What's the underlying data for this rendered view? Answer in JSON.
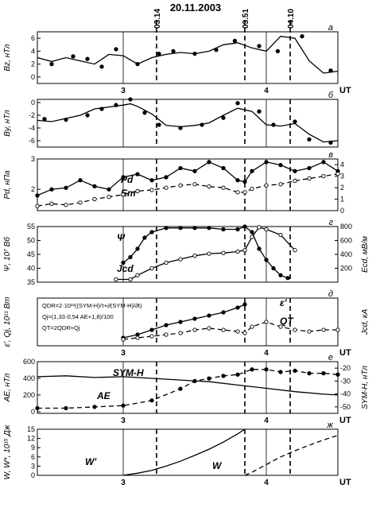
{
  "title": "20.11.2003",
  "ut_label": "UT",
  "event_times": [
    "03.14",
    "03.51",
    "04.10"
  ],
  "event_hours": [
    3.233,
    3.85,
    4.167
  ],
  "x_range": [
    2.4,
    4.5
  ],
  "x_ticks": [
    3,
    4
  ],
  "x_tick_labels": [
    "3",
    "4"
  ],
  "panels": [
    {
      "id": "a",
      "letter": "a",
      "ylabel": "Bz, нТл",
      "y_range": [
        -1,
        7
      ],
      "y_ticks": [
        0,
        2,
        4,
        6
      ],
      "y_tick_labels": [
        "0",
        "2",
        "4",
        "6"
      ],
      "series": [
        {
          "axis": "left",
          "style": "solid",
          "markers": "none",
          "x": [
            2.4,
            2.5,
            2.6,
            2.7,
            2.8,
            2.9,
            3.0,
            3.1,
            3.2,
            3.3,
            3.4,
            3.5,
            3.6,
            3.7,
            3.8,
            3.9,
            4.0,
            4.1,
            4.2,
            4.3,
            4.4,
            4.5
          ],
          "y": [
            3.0,
            2.4,
            3.0,
            2.5,
            2.0,
            3.5,
            3.3,
            2.0,
            3.0,
            3.5,
            3.8,
            3.6,
            4.0,
            5.0,
            5.3,
            4.5,
            4.0,
            6.3,
            6.0,
            2.5,
            0.6,
            0.9
          ]
        },
        {
          "axis": "left",
          "style": "none",
          "markers": "filled",
          "x": [
            2.5,
            2.65,
            2.75,
            2.85,
            2.95,
            3.1,
            3.25,
            3.35,
            3.5,
            3.65,
            3.78,
            3.95,
            4.08,
            4.25,
            4.45
          ],
          "y": [
            2.0,
            3.2,
            2.8,
            1.6,
            4.3,
            2.0,
            3.6,
            4.0,
            3.6,
            4.2,
            5.6,
            4.8,
            4.0,
            6.3,
            1.0
          ]
        }
      ]
    },
    {
      "id": "b",
      "letter": "б",
      "ylabel": "By, нТл",
      "y_range": [
        -7,
        0.5
      ],
      "y_ticks": [
        0,
        -2,
        -4,
        -6
      ],
      "y_tick_labels": [
        "0",
        "-2",
        "-4",
        "-6"
      ],
      "series": [
        {
          "axis": "left",
          "style": "solid",
          "markers": "none",
          "x": [
            2.4,
            2.5,
            2.6,
            2.7,
            2.8,
            2.9,
            3.0,
            3.05,
            3.1,
            3.2,
            3.3,
            3.4,
            3.5,
            3.6,
            3.7,
            3.8,
            3.9,
            4.0,
            4.1,
            4.2,
            4.3,
            4.4,
            4.5
          ],
          "y": [
            -2.8,
            -3.0,
            -2.5,
            -2.0,
            -1.0,
            -0.7,
            -0.4,
            -0.2,
            -0.6,
            -1.8,
            -3.6,
            -3.8,
            -3.6,
            -3.2,
            -2.0,
            -0.9,
            -1.4,
            -3.5,
            -3.7,
            -3.3,
            -5.0,
            -6.2,
            -6.0
          ]
        },
        {
          "axis": "left",
          "style": "none",
          "markers": "filled",
          "x": [
            2.45,
            2.6,
            2.75,
            2.85,
            2.95,
            3.05,
            3.15,
            3.25,
            3.4,
            3.55,
            3.7,
            3.8,
            3.95,
            4.05,
            4.2,
            4.3,
            4.45
          ],
          "y": [
            -2.6,
            -2.7,
            -2.0,
            -1.0,
            -0.4,
            0.5,
            -1.6,
            -3.5,
            -4.0,
            -3.5,
            -2.4,
            -0.1,
            -1.4,
            -3.5,
            -3.0,
            -5.8,
            -6.3
          ]
        }
      ]
    },
    {
      "id": "v",
      "letter": "в",
      "ylabel": "Pd, нПа",
      "y_range": [
        1.3,
        3.0
      ],
      "y_ticks": [
        2,
        3
      ],
      "y_tick_labels": [
        "2",
        "3"
      ],
      "y2_range": [
        0,
        4.5
      ],
      "y2_ticks": [
        0,
        1,
        2,
        3,
        4
      ],
      "y2_tick_labels": [
        "0",
        "1",
        "2",
        "3",
        "4"
      ],
      "labels": [
        "Pd",
        "Em"
      ],
      "series": [
        {
          "name": "Pd",
          "axis": "left",
          "style": "solid",
          "markers": "filled",
          "x": [
            2.4,
            2.5,
            2.6,
            2.7,
            2.8,
            2.9,
            3.0,
            3.1,
            3.2,
            3.3,
            3.4,
            3.5,
            3.6,
            3.7,
            3.8,
            3.85,
            3.9,
            4.0,
            4.1,
            4.2,
            4.3,
            4.4,
            4.5
          ],
          "y": [
            1.8,
            2.0,
            2.05,
            2.3,
            2.1,
            2.0,
            2.4,
            2.5,
            2.3,
            2.4,
            2.7,
            2.6,
            2.9,
            2.7,
            2.3,
            2.25,
            2.6,
            2.9,
            2.8,
            2.6,
            2.7,
            2.9,
            2.6
          ]
        },
        {
          "name": "Em",
          "axis": "right",
          "style": "dashed",
          "markers": "open",
          "x": [
            2.4,
            2.5,
            2.6,
            2.7,
            2.8,
            2.9,
            3.0,
            3.1,
            3.2,
            3.3,
            3.4,
            3.5,
            3.6,
            3.7,
            3.8,
            3.85,
            3.9,
            4.0,
            4.1,
            4.2,
            4.3,
            4.4,
            4.5
          ],
          "y": [
            0.4,
            0.6,
            0.5,
            0.7,
            1.0,
            1.2,
            1.4,
            1.7,
            1.8,
            2.0,
            2.2,
            2.3,
            2.1,
            2.0,
            1.6,
            1.6,
            1.9,
            2.2,
            2.3,
            2.6,
            2.8,
            3.0,
            3.2
          ]
        }
      ]
    },
    {
      "id": "g",
      "letter": "г",
      "ylabel": "Ψ, 10⁷ Вб",
      "y2label": "Ecd, мВ/м",
      "y_range": [
        35,
        55
      ],
      "y_ticks": [
        35,
        40,
        45,
        50,
        55
      ],
      "y_tick_labels": [
        "35",
        "40",
        "45",
        "50",
        "55"
      ],
      "y2_range": [
        0,
        800
      ],
      "y2_ticks": [
        200,
        400,
        600,
        800
      ],
      "y2_tick_labels": [
        "200",
        "400",
        "600",
        "800"
      ],
      "labels": [
        "Ψ",
        "Jcd"
      ],
      "series": [
        {
          "name": "Ψ",
          "axis": "left",
          "style": "solid",
          "markers": "filled",
          "x": [
            3.0,
            3.05,
            3.1,
            3.15,
            3.2,
            3.3,
            3.4,
            3.5,
            3.6,
            3.7,
            3.8,
            3.85,
            3.9,
            3.95,
            4.0,
            4.05,
            4.1,
            4.15
          ],
          "y": [
            42,
            44,
            47,
            51,
            53,
            54.5,
            54.5,
            54.5,
            54.5,
            54,
            54,
            55,
            53,
            47,
            43,
            40,
            37.5,
            36.5
          ]
        },
        {
          "name": "Jcd",
          "axis": "right",
          "style": "solid",
          "markers": "open",
          "x": [
            2.95,
            3.05,
            3.1,
            3.2,
            3.3,
            3.4,
            3.5,
            3.6,
            3.7,
            3.8,
            3.85,
            3.9,
            3.95,
            4.0,
            4.1,
            4.2
          ],
          "y": [
            40,
            40,
            100,
            200,
            280,
            330,
            380,
            410,
            420,
            440,
            460,
            650,
            790,
            760,
            680,
            460
          ]
        }
      ]
    },
    {
      "id": "d",
      "letter": "д",
      "ylabel": "ε', Qj, 10¹¹ Вт",
      "y2label": "Jcd, кА",
      "formulas": [
        "QDR=2·10¹³((SYM-H)/τ+∂(SYM-H)/∂t)",
        "Qj=(1,33·0,54 AE+1,8)/100",
        "QT=2QDR+Qj"
      ],
      "labels": [
        "ε'",
        "QT"
      ],
      "series": [
        {
          "name": "ε'",
          "axis": "left",
          "style": "solid",
          "markers": "filled",
          "x": [
            3.0,
            3.1,
            3.2,
            3.3,
            3.4,
            3.5,
            3.6,
            3.7,
            3.8,
            3.85
          ],
          "y": [
            2.5,
            3.5,
            5.0,
            6.5,
            7.5,
            8.5,
            9.5,
            10.5,
            12.0,
            13.0
          ]
        },
        {
          "name": "QT",
          "axis": "left",
          "style": "dashed",
          "markers": "open",
          "x": [
            3.0,
            3.1,
            3.2,
            3.3,
            3.4,
            3.5,
            3.6,
            3.7,
            3.8,
            3.85,
            3.9,
            4.0,
            4.1,
            4.2,
            4.3,
            4.4,
            4.5
          ],
          "y": [
            2.0,
            2.5,
            3.0,
            3.5,
            4.0,
            5.0,
            5.5,
            5.0,
            4.5,
            4.0,
            6.0,
            7.5,
            6.0,
            5.0,
            4.5,
            5.0,
            5.0
          ]
        }
      ]
    },
    {
      "id": "e",
      "letter": "е",
      "ylabel": "AE, нТл",
      "y2label": "SYM-H, нТл",
      "y_range": [
        -20,
        600
      ],
      "y_ticks": [
        0,
        200,
        400,
        600
      ],
      "y_tick_labels": [
        "0",
        "200",
        "400",
        "600"
      ],
      "y2_range": [
        -55,
        -15
      ],
      "y2_ticks": [
        -20,
        -30,
        -40,
        -50
      ],
      "y2_tick_labels": [
        "-20",
        "-30",
        "-40",
        "-50"
      ],
      "labels": [
        "SYM-H",
        "AE"
      ],
      "series": [
        {
          "name": "SYM-H",
          "axis": "left",
          "style": "solid",
          "markers": "none",
          "x": [
            2.4,
            2.6,
            2.8,
            3.0,
            3.2,
            3.4,
            3.6,
            3.8,
            4.0,
            4.2,
            4.4,
            4.5
          ],
          "y": [
            420,
            430,
            410,
            420,
            400,
            380,
            360,
            320,
            280,
            240,
            210,
            200
          ]
        },
        {
          "name": "AE",
          "axis": "right",
          "style": "dashed",
          "markers": "filled",
          "x": [
            2.4,
            2.6,
            2.8,
            3.0,
            3.2,
            3.4,
            3.5,
            3.6,
            3.7,
            3.8,
            3.9,
            4.0,
            4.1,
            4.2,
            4.3,
            4.4,
            4.5
          ],
          "y": [
            -51,
            -51,
            -50,
            -49,
            -45,
            -36,
            -30,
            -28,
            -26,
            -25,
            -21,
            -21,
            -23,
            -22,
            -24,
            -24,
            -25
          ]
        }
      ]
    },
    {
      "id": "zh",
      "letter": "ж",
      "ylabel": "W, W*, 10¹⁵ Дж",
      "y_range": [
        0,
        15
      ],
      "y_ticks": [
        0,
        3,
        6,
        9,
        12,
        15
      ],
      "y_tick_labels": [
        "0",
        "3",
        "6",
        "9",
        "12",
        "15"
      ],
      "labels": [
        "W'",
        "W"
      ],
      "series": [
        {
          "name": "W'",
          "axis": "left",
          "style": "solid",
          "markers": "none",
          "x": [
            3.0,
            3.1,
            3.2,
            3.3,
            3.4,
            3.5,
            3.6,
            3.7,
            3.8,
            3.85
          ],
          "y": [
            0,
            0.7,
            1.6,
            3.0,
            4.6,
            6.5,
            8.5,
            10.8,
            13.5,
            15
          ]
        },
        {
          "name": "W",
          "axis": "left",
          "style": "dashed",
          "markers": "none",
          "x": [
            3.85,
            3.9,
            4.0,
            4.1,
            4.2,
            4.3,
            4.4,
            4.5
          ],
          "y": [
            0,
            1.0,
            3.5,
            6.0,
            8.0,
            9.8,
            11.5,
            13.0
          ]
        }
      ]
    }
  ],
  "chart_data": {
    "type": "line",
    "title": "20.11.2003",
    "xlabel": "UT",
    "xlim": [
      2.4,
      4.5
    ]
  }
}
